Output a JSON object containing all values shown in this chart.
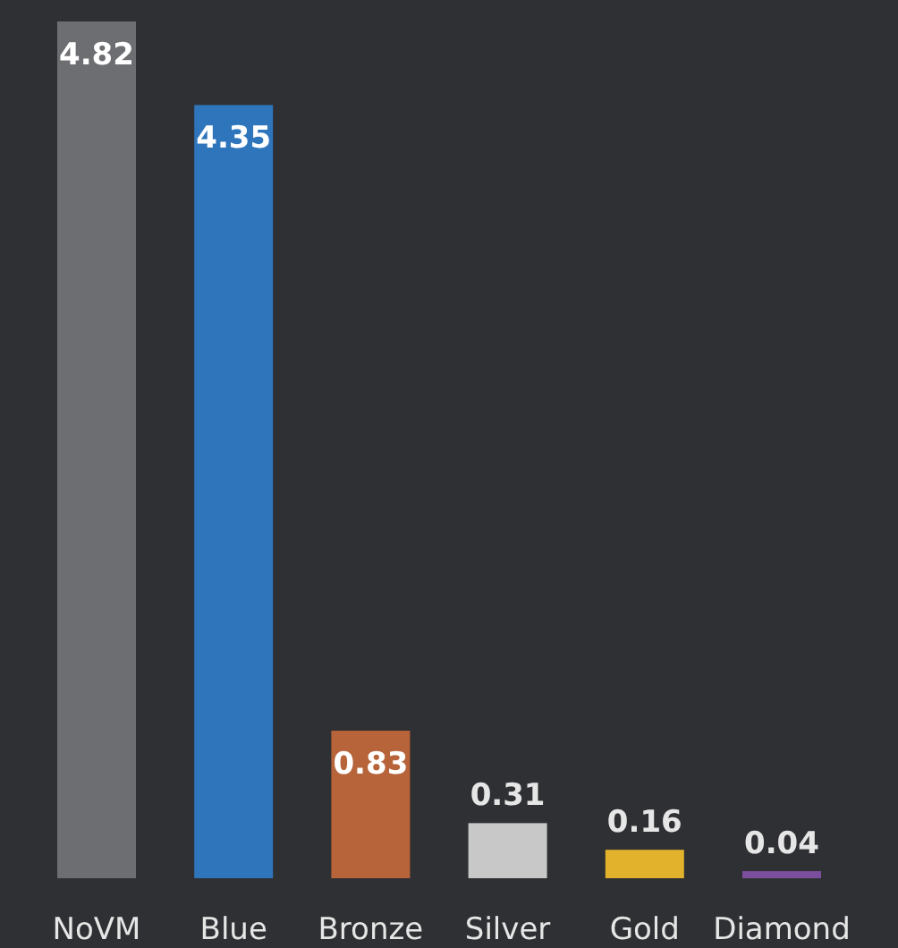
{
  "chart_data": {
    "type": "bar",
    "categories": [
      "NoVM",
      "Blue",
      "Bronze",
      "Silver",
      "Gold",
      "Diamond"
    ],
    "values": [
      4.82,
      4.35,
      0.83,
      0.31,
      0.16,
      0.04
    ],
    "colors": [
      "#6d6e71",
      "#2e75bb",
      "#b8643a",
      "#c8c8c8",
      "#e3b22c",
      "#7b4f9e"
    ],
    "data_labels": true
  }
}
